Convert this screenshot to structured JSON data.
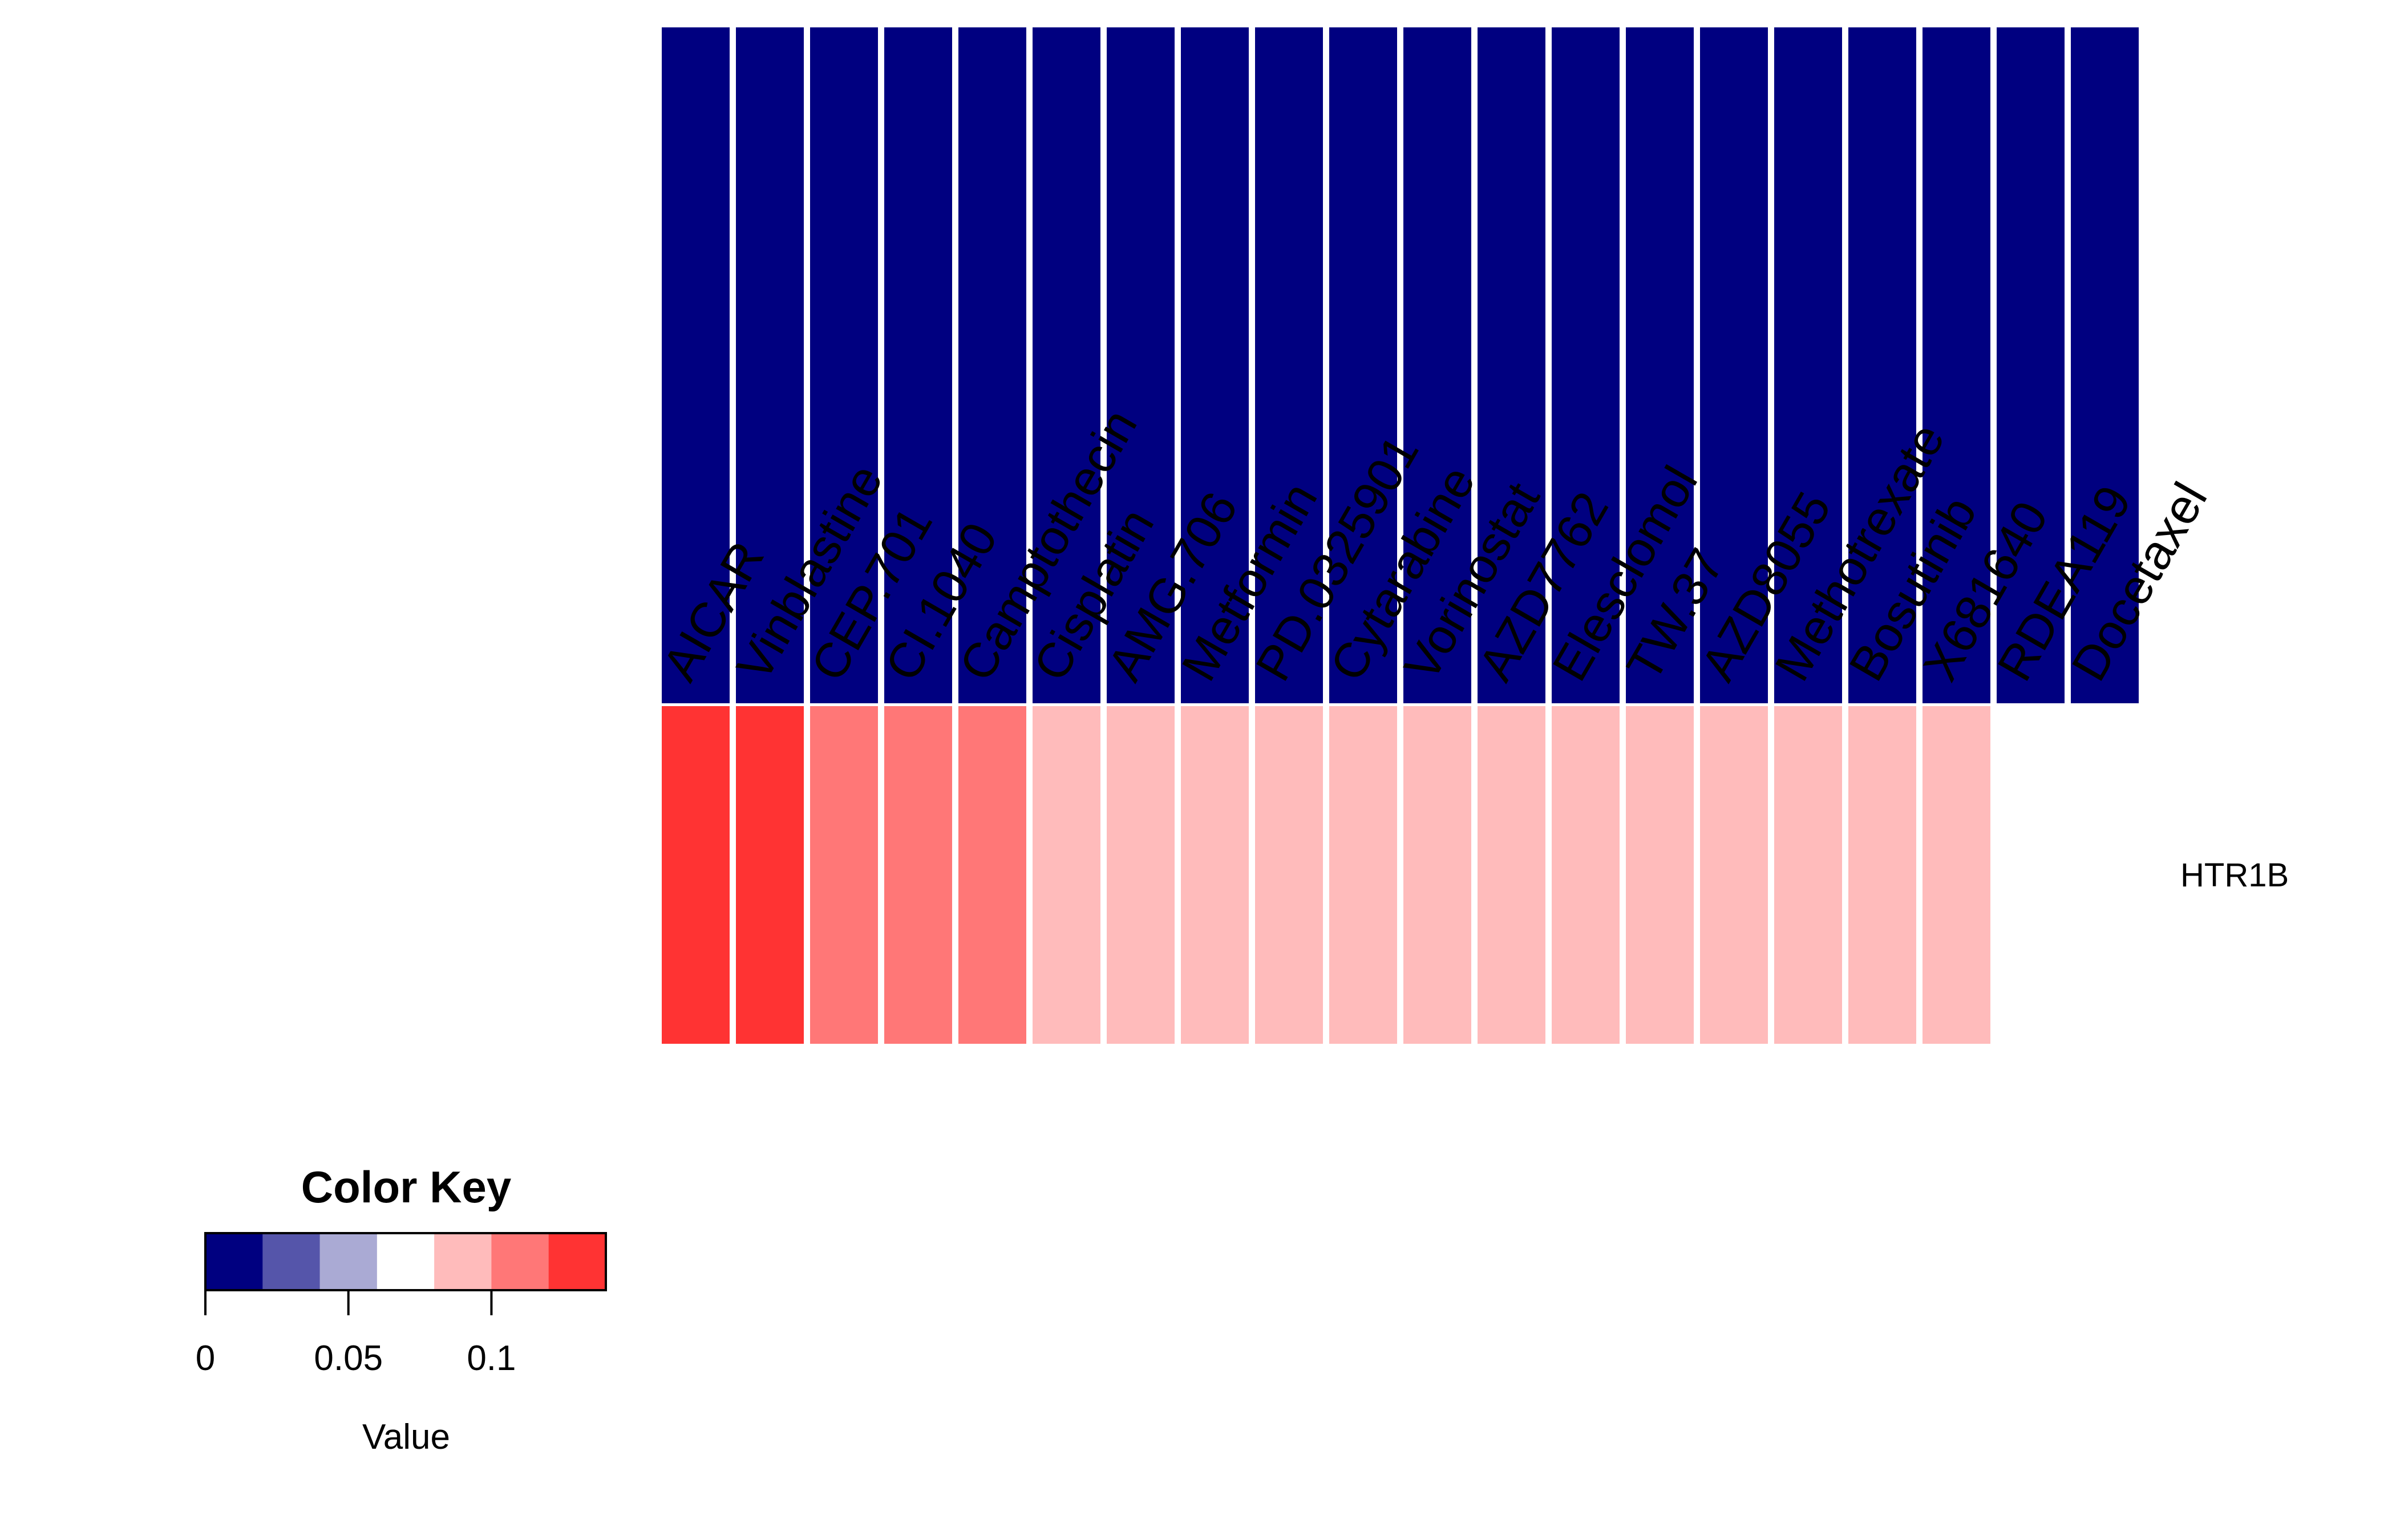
{
  "chart_data": {
    "type": "heatmap",
    "title": "",
    "columns": [
      "AICAR",
      "Vinblastine",
      "CEP.701",
      "CI.1040",
      "Camptothecin",
      "Cisplatin",
      "AMG.706",
      "Metformin",
      "PD.0325901",
      "Cytarabine",
      "Vorinostat",
      "AZD7762",
      "Elesclomol",
      "TW.37",
      "AZD8055",
      "Methotrexate",
      "Bosutinib",
      "X681640",
      "RDEA119",
      "Docetaxel"
    ],
    "rows": [
      {
        "name": "",
        "values": [
          0,
          0,
          0,
          0,
          0,
          0,
          0,
          0,
          0,
          0,
          0,
          0,
          0,
          0,
          0,
          0,
          0,
          0,
          0,
          0
        ]
      },
      {
        "name": "HTR1B",
        "values": [
          0.13,
          0.13,
          0.11,
          0.11,
          0.11,
          0.09,
          0.09,
          0.09,
          0.09,
          0.09,
          0.09,
          0.09,
          0.09,
          0.09,
          0.09,
          0.09,
          0.09,
          0.09,
          null,
          null
        ]
      }
    ],
    "color_key": {
      "title": "Color Key",
      "xlabel": "Value",
      "range": [
        0,
        0.14
      ],
      "breaks": [
        0,
        0.02,
        0.04,
        0.06,
        0.08,
        0.1,
        0.12,
        0.14
      ],
      "colors": [
        "#000080",
        "#5555aa",
        "#aaaad4",
        "#ffffff",
        "#ffbbbb",
        "#ff7777",
        "#ff3333"
      ],
      "ticks": [
        0,
        0.05,
        0.1
      ],
      "tick_labels": [
        "0",
        "0.05",
        "0.1"
      ]
    }
  }
}
